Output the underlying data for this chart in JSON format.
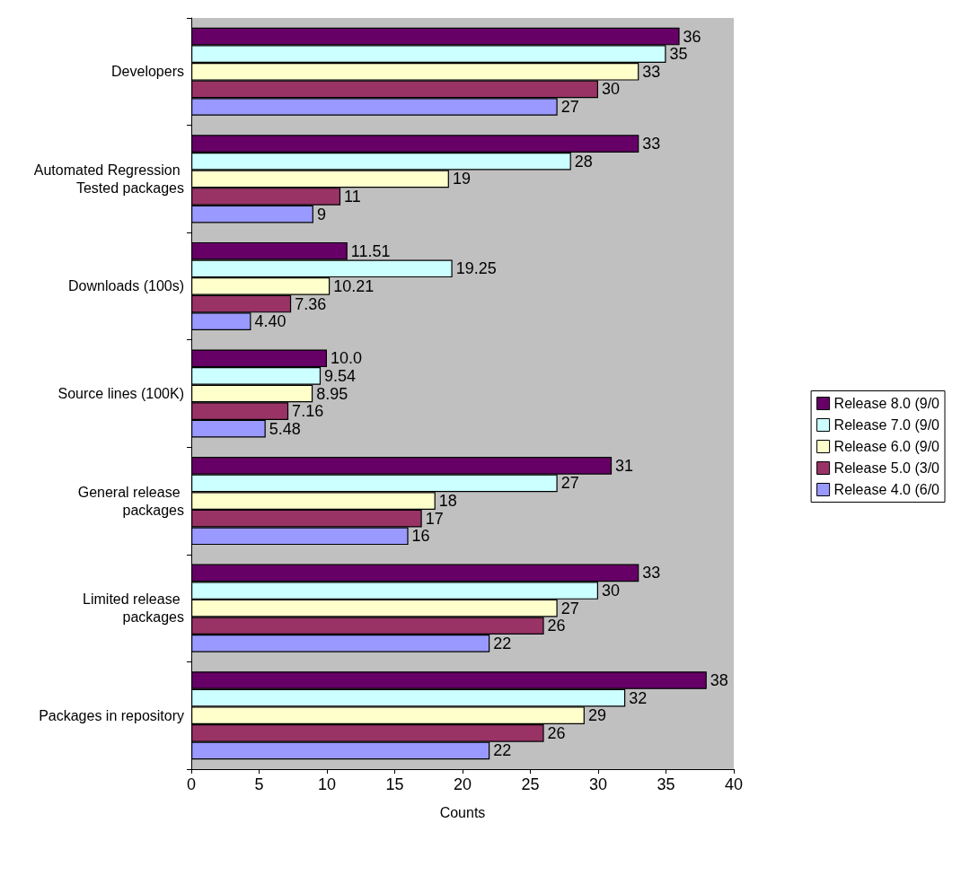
{
  "chart_data": {
    "type": "bar",
    "orientation": "horizontal",
    "xlabel": "Counts",
    "categories": [
      "Developers",
      "Automated Regression Tested packages",
      "Downloads (100s)",
      "Source lines (100K)",
      "General release packages",
      "Limited release packages",
      "Packages in repository"
    ],
    "series": [
      {
        "name": "Release 8.0 (9/0",
        "color": "#660066",
        "values": [
          36,
          33,
          11.51,
          10.0,
          31,
          33,
          38
        ],
        "value_labels": [
          "36",
          "33",
          "11.51",
          "10.0",
          "31",
          "33",
          "38"
        ]
      },
      {
        "name": "Release 7.0 (9/0",
        "color": "#ccffff",
        "values": [
          35,
          28,
          19.25,
          9.54,
          27,
          30,
          32
        ],
        "value_labels": [
          "35",
          "28",
          "19.25",
          "9.54",
          "27",
          "30",
          "32"
        ]
      },
      {
        "name": "Release 6.0 (9/0",
        "color": "#ffffcc",
        "values": [
          33,
          19,
          10.21,
          8.95,
          18,
          27,
          29
        ],
        "value_labels": [
          "33",
          "19",
          "10.21",
          "8.95",
          "18",
          "27",
          "29"
        ]
      },
      {
        "name": "Release 5.0 (3/0",
        "color": "#993366",
        "values": [
          30,
          11,
          7.36,
          7.16,
          17,
          26,
          26
        ],
        "value_labels": [
          "30",
          "11",
          "7.36",
          "7.16",
          "17",
          "26",
          "26"
        ]
      },
      {
        "name": "Release 4.0 (6/0",
        "color": "#9999ff",
        "values": [
          27,
          9,
          4.4,
          5.48,
          16,
          22,
          22
        ],
        "value_labels": [
          "27",
          "9",
          "4.40",
          "5.48",
          "16",
          "22",
          "22"
        ]
      }
    ],
    "xlim": [
      0,
      40
    ],
    "xticks": [
      0,
      5,
      10,
      15,
      20,
      25,
      30,
      35,
      40
    ],
    "grid": false,
    "legend": "right"
  }
}
